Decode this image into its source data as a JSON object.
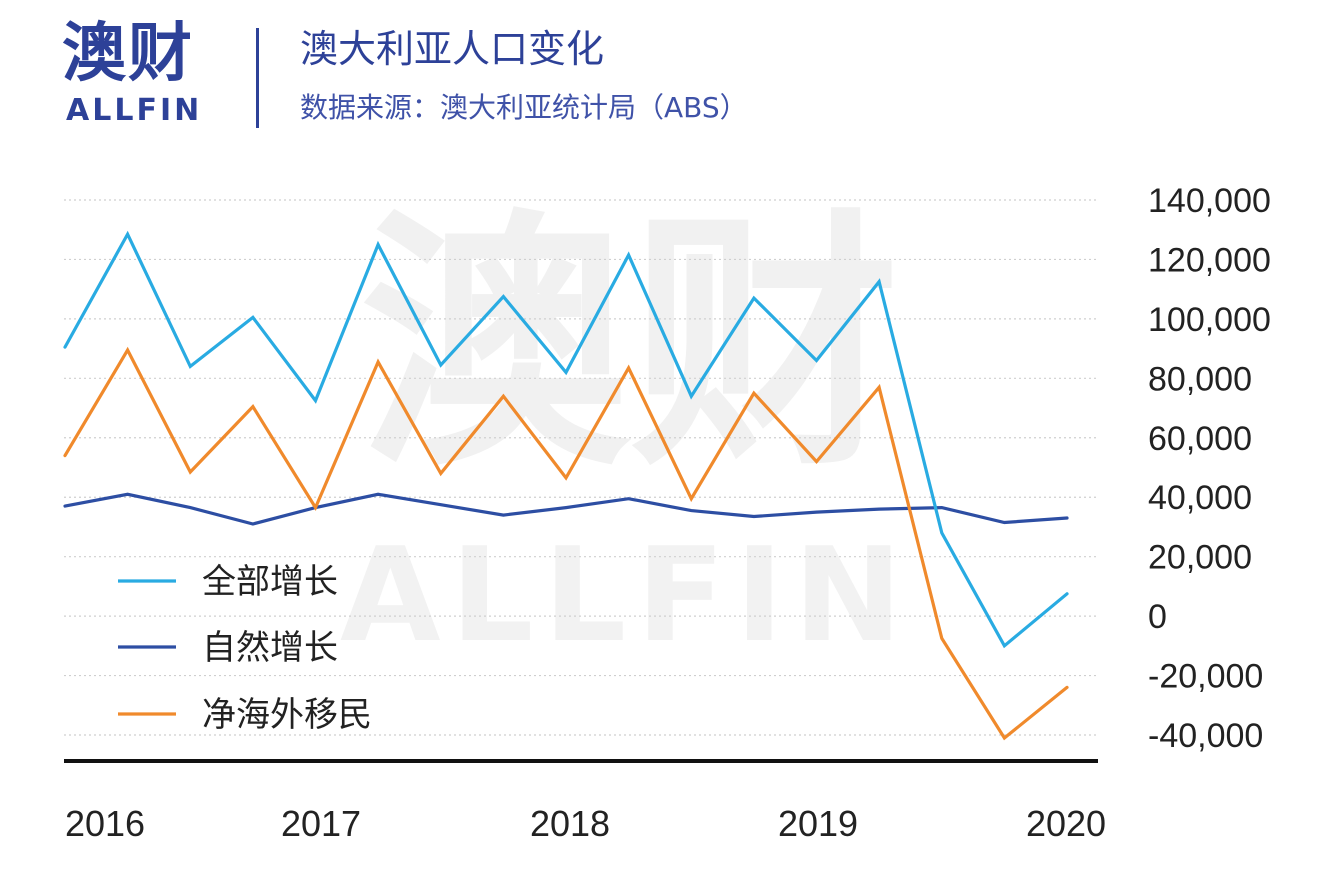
{
  "header": {
    "logo_main": "澳财",
    "logo_sub": "ALLFIN",
    "title": "澳大利亚人口变化",
    "subtitle": "数据来源：澳大利亚统计局（ABS）"
  },
  "watermark": {
    "big": "澳财",
    "small": "ALLFIN"
  },
  "chart_data": {
    "type": "line",
    "title": "澳大利亚人口变化",
    "subtitle": "数据来源：澳大利亚统计局（ABS）",
    "xlabel": "",
    "ylabel": "",
    "ylim": [
      -40000,
      140000
    ],
    "yticks": [
      140000,
      120000,
      100000,
      80000,
      60000,
      40000,
      20000,
      0,
      -20000,
      -40000
    ],
    "ytick_labels": [
      "140,000",
      "120,000",
      "100,000",
      "80,000",
      "60,000",
      "40,000",
      "20,000",
      "0",
      "-20,000",
      "-40,000"
    ],
    "xtick_labels": [
      "2016",
      "2017",
      "2018",
      "2019",
      "2020"
    ],
    "grid": "horizontal-dotted",
    "y_axis_side": "right",
    "legend_position": "lower-left",
    "series": [
      {
        "name": "全部增长",
        "color": "#29abe2",
        "values": [
          90500,
          128500,
          84000,
          100500,
          72500,
          125000,
          84500,
          107500,
          82000,
          121500,
          74000,
          107000,
          86000,
          112500,
          28000,
          -10000,
          7500
        ]
      },
      {
        "name": "自然增长",
        "color": "#2d4ea3",
        "values": [
          37000,
          41000,
          36500,
          31000,
          36500,
          41000,
          37500,
          34000,
          36500,
          39500,
          35500,
          33500,
          35000,
          36000,
          36500,
          31500,
          33000
        ]
      },
      {
        "name": "净海外移民",
        "color": "#f08a2c",
        "values": [
          54000,
          89500,
          48500,
          70500,
          36500,
          85500,
          48000,
          74000,
          46500,
          83500,
          39500,
          75000,
          52000,
          77000,
          -7500,
          -41000,
          -24000
        ]
      }
    ]
  }
}
